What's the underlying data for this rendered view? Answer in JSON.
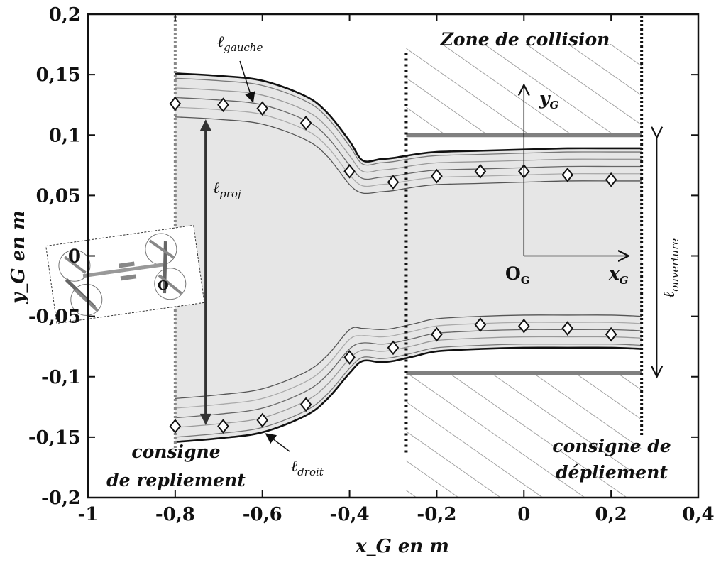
{
  "chart_data": {
    "type": "line",
    "xlabel": "x_G en m",
    "ylabel": "y_G en m",
    "xlim": [
      -1,
      0.4
    ],
    "ylim": [
      -0.2,
      0.2
    ],
    "x_ticks": [
      -1,
      -0.8,
      -0.6,
      -0.4,
      -0.2,
      0,
      0.2,
      0.4
    ],
    "x_tick_labels": [
      "-1",
      "-0,8",
      "-0,6",
      "-0,4",
      "-0,2",
      "0",
      "0,2",
      "0,4"
    ],
    "y_ticks": [
      0.2,
      0.15,
      0.1,
      0.05,
      0,
      -0.05,
      -0.1,
      -0.15,
      -0.2
    ],
    "y_tick_labels": [
      "0,2",
      "0,15",
      "0,1",
      "0,05",
      "0",
      "-0,05",
      "-0,1",
      "-0,15",
      "-0,2"
    ],
    "grid": false,
    "series": [
      {
        "kind": "envelope-upper",
        "x": [
          -0.8,
          -0.7,
          -0.6,
          -0.5,
          -0.45,
          -0.4,
          -0.37,
          -0.33,
          -0.3,
          -0.25,
          -0.2,
          -0.1,
          0,
          0.1,
          0.2,
          0.27
        ],
        "y": [
          0.151,
          0.149,
          0.145,
          0.132,
          0.118,
          0.095,
          0.079,
          0.08,
          0.081,
          0.084,
          0.086,
          0.087,
          0.088,
          0.089,
          0.089,
          0.089
        ]
      },
      {
        "kind": "envelope-lower",
        "x": [
          -0.8,
          -0.7,
          -0.6,
          -0.5,
          -0.45,
          -0.4,
          -0.37,
          -0.33,
          -0.3,
          -0.25,
          -0.2,
          -0.1,
          0,
          0.1,
          0.2,
          0.27
        ],
        "y": [
          -0.154,
          -0.151,
          -0.146,
          -0.132,
          -0.118,
          -0.097,
          -0.087,
          -0.088,
          -0.087,
          -0.083,
          -0.079,
          -0.077,
          -0.076,
          -0.076,
          -0.076,
          -0.077
        ]
      },
      {
        "kind": "markers-left-track",
        "x": [
          -0.8,
          -0.69,
          -0.6,
          -0.5,
          -0.4,
          -0.3,
          -0.2,
          -0.1,
          0,
          0.1,
          0.2
        ],
        "y": [
          0.126,
          0.125,
          0.122,
          0.11,
          0.07,
          0.061,
          0.066,
          0.07,
          0.07,
          0.067,
          0.063
        ]
      },
      {
        "kind": "markers-right-track",
        "x": [
          -0.8,
          -0.69,
          -0.6,
          -0.5,
          -0.4,
          -0.3,
          -0.2,
          -0.1,
          0,
          0.1,
          0.2
        ],
        "y": [
          -0.141,
          -0.141,
          -0.136,
          -0.123,
          -0.084,
          -0.076,
          -0.065,
          -0.057,
          -0.058,
          -0.06,
          -0.065
        ]
      }
    ],
    "walls": {
      "upper_y": 0.1,
      "lower_y": -0.097,
      "x_start": -0.27,
      "x_end": 0.27
    },
    "vertical_lines": {
      "repliement_x": -0.8,
      "collision_start_x": -0.27,
      "depliement_x": 0.27
    },
    "frame_origin": {
      "x": 0,
      "y": 0,
      "x_axis_end": 0.25,
      "y_axis_end": 0.145
    },
    "l_proj_arrow": {
      "x": -0.73,
      "y_top": 0.113,
      "y_bottom": -0.14
    },
    "l_ouverture_arrow": {
      "x": 0.305,
      "y_top": 0.098,
      "y_bottom": -0.1
    },
    "robot_origin": {
      "x": -0.91,
      "y": -0.015
    }
  },
  "annotations": {
    "zone_collision": "Zone de collision",
    "consigne_repliement_line1": "consigne",
    "consigne_repliement_line2": "de repliement",
    "consigne_depliement_line1": "consigne de",
    "consigne_depliement_line2": "dépliement",
    "l_gauche_main": "ℓ",
    "l_gauche_sub": "gauche",
    "l_droit_main": "ℓ",
    "l_droit_sub": "droit",
    "l_proj_main": "ℓ",
    "l_proj_sub": "proj",
    "l_ouverture_main": "ℓ",
    "l_ouverture_sub": "ouverture",
    "og_main": "O",
    "og_sub": "G",
    "xg_main": "x",
    "xg_sub": "G",
    "yg_main": "y",
    "yg_sub": "G",
    "robot_origin_label": "O"
  }
}
